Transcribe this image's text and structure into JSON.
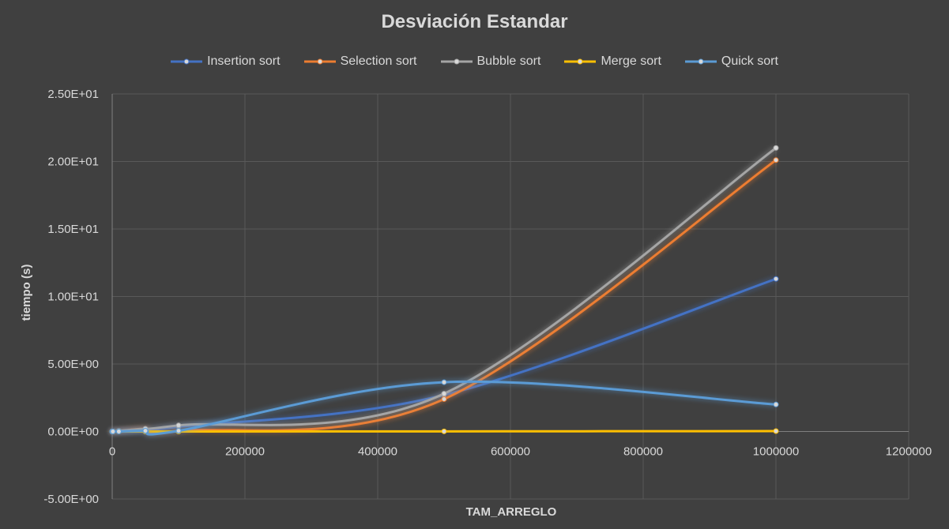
{
  "chart_data": {
    "type": "line",
    "title": "Desviación Estandar",
    "xlabel": "TAM_ARREGLO",
    "ylabel": "tiempo (s)",
    "xlim": [
      0,
      1200000
    ],
    "ylim": [
      -5,
      25
    ],
    "x_ticks": [
      "0",
      "200000",
      "400000",
      "600000",
      "800000",
      "1000000",
      "1200000"
    ],
    "y_ticks": [
      "-5.00E+00",
      "0.00E+00",
      "5.00E+00",
      "1.00E+01",
      "1.50E+01",
      "2.00E+01",
      "2.50E+01"
    ],
    "grid": true,
    "legend_position": "top",
    "x": [
      10,
      100,
      1000,
      10000,
      50000,
      100000,
      500000,
      1000000
    ],
    "series": [
      {
        "name": "Insertion sort",
        "color": "#4472c4",
        "values": [
          0,
          0,
          0,
          0.02,
          0.1,
          0.35,
          2.7,
          11.3
        ]
      },
      {
        "name": "Selection sort",
        "color": "#ed7d31",
        "values": [
          0,
          0,
          0,
          0.03,
          0.2,
          0.05,
          2.4,
          20.1
        ]
      },
      {
        "name": "Bubble sort",
        "color": "#a5a5a5",
        "values": [
          0,
          0,
          0,
          0.04,
          0.2,
          0.45,
          2.8,
          21.0
        ]
      },
      {
        "name": "Merge sort",
        "color": "#ffc000",
        "values": [
          0,
          0,
          0,
          0,
          0,
          0,
          0.01,
          0.03
        ]
      },
      {
        "name": "Quick sort",
        "color": "#5b9bd5",
        "values": [
          0,
          0,
          0,
          0,
          0.05,
          0.05,
          3.65,
          2.0
        ]
      }
    ]
  }
}
